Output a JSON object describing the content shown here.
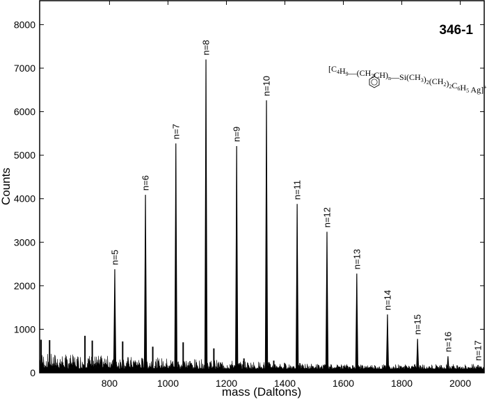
{
  "chart_data": {
    "type": "line",
    "title": "346-1",
    "subtitle": "[C4H9—(CH2CH)n—Si(CH3)2(CH2)2C6H5 Ag]+",
    "annotation_formula": {
      "prefix": "[C",
      "parts": [
        {
          "t": "[C"
        },
        {
          "t": "4",
          "sub": true
        },
        {
          "t": "H"
        },
        {
          "t": "9",
          "sub": true
        },
        {
          "t": "—(CH"
        },
        {
          "t": "2",
          "sub": true
        },
        {
          "t": "CH)"
        },
        {
          "t": "n",
          "sub": true
        },
        {
          "t": "—Si(CH"
        },
        {
          "t": "3",
          "sub": true
        },
        {
          "t": ")"
        },
        {
          "t": "2",
          "sub": true
        },
        {
          "t": "(CH"
        },
        {
          "t": "2",
          "sub": true
        },
        {
          "t": ")"
        },
        {
          "t": "2",
          "sub": true
        },
        {
          "t": "C"
        },
        {
          "t": "6",
          "sub": true
        },
        {
          "t": "H"
        },
        {
          "t": "5",
          "sub": true
        },
        {
          "t": " Ag]"
        },
        {
          "t": "+",
          "sup": true
        }
      ],
      "pendant_group": "phenyl-ring"
    },
    "xlabel": "mass (Daltons)",
    "ylabel": "Counts",
    "xlim": [
      561,
      2082
    ],
    "ylim": [
      0,
      8550
    ],
    "x_ticks": [
      800,
      1000,
      1200,
      1400,
      1600,
      1800,
      2000
    ],
    "y_ticks": [
      0,
      1000,
      2000,
      3000,
      4000,
      5000,
      6000,
      7000,
      8000
    ],
    "grid": false,
    "legend": null,
    "peaks": [
      {
        "label": "n=5",
        "mass": 818,
        "counts": 2380
      },
      {
        "label": "n=6",
        "mass": 923,
        "counts": 4090
      },
      {
        "label": "n=7",
        "mass": 1027,
        "counts": 5270
      },
      {
        "label": "n=8",
        "mass": 1130,
        "counts": 7200
      },
      {
        "label": "n=9",
        "mass": 1235,
        "counts": 5210
      },
      {
        "label": "n=10",
        "mass": 1337,
        "counts": 6260
      },
      {
        "label": "n=11",
        "mass": 1442,
        "counts": 3880
      },
      {
        "label": "n=12",
        "mass": 1544,
        "counts": 3240
      },
      {
        "label": "n=13",
        "mass": 1646,
        "counts": 2280
      },
      {
        "label": "n=14",
        "mass": 1751,
        "counts": 1340
      },
      {
        "label": "n=15",
        "mass": 1854,
        "counts": 780
      },
      {
        "label": "n=16",
        "mass": 1958,
        "counts": 380
      },
      {
        "label": "n=17",
        "mass": 2061,
        "counts": 180
      }
    ],
    "minor_peaks": [
      {
        "mass": 566,
        "counts": 760
      },
      {
        "mass": 595,
        "counts": 750
      },
      {
        "mass": 716,
        "counts": 850
      },
      {
        "mass": 741,
        "counts": 740
      },
      {
        "mass": 845,
        "counts": 720
      },
      {
        "mass": 948,
        "counts": 600
      },
      {
        "mass": 1052,
        "counts": 700
      },
      {
        "mass": 1157,
        "counts": 560
      },
      {
        "mass": 1260,
        "counts": 330
      },
      {
        "mass": 1362,
        "counts": 280
      }
    ],
    "baseline_noise_counts": [
      100,
      450
    ]
  },
  "colors": {
    "background": "#ffffff",
    "trace": "#000000",
    "axes": "#000000"
  }
}
